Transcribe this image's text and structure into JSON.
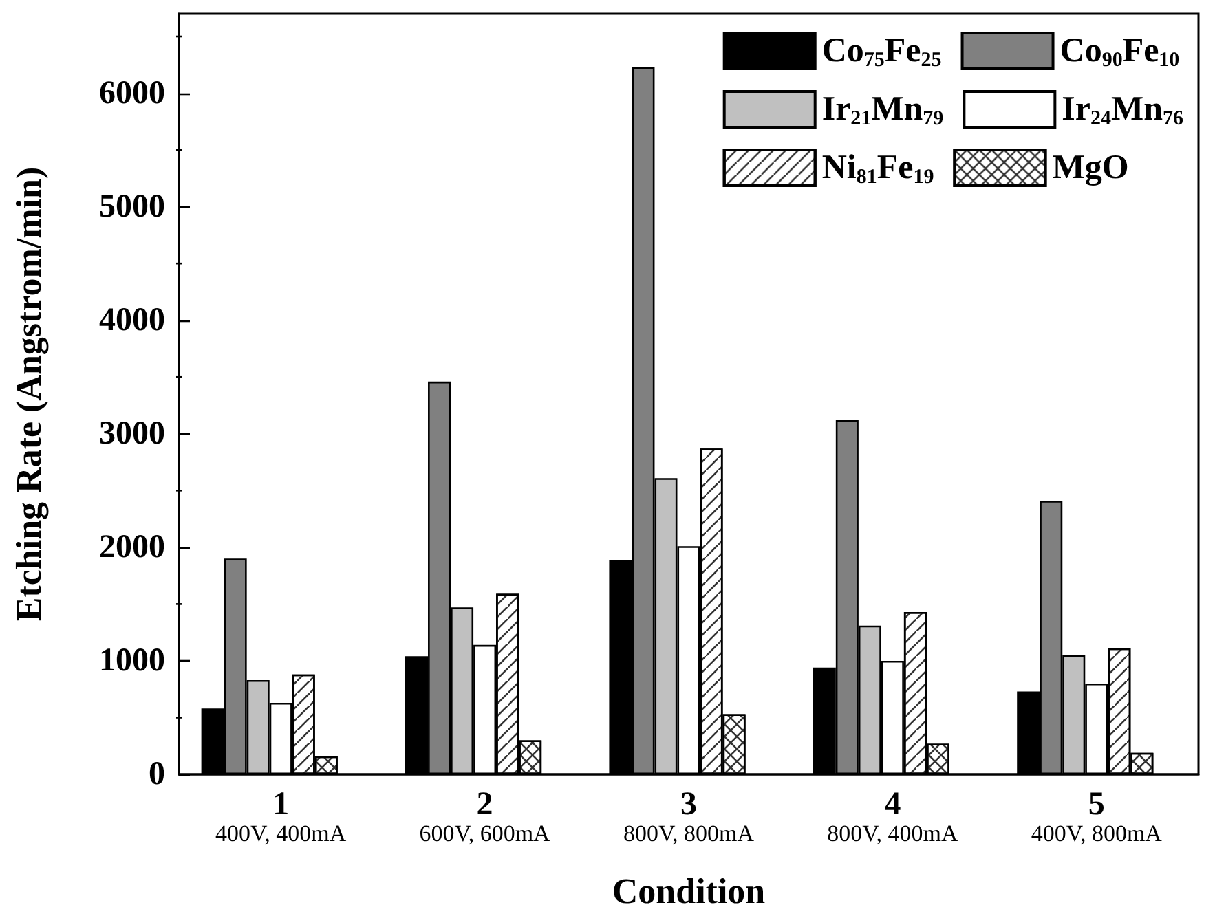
{
  "chart_data": {
    "type": "bar",
    "xlabel": "Condition",
    "ylabel": "Etching Rate (Angstrom/min)",
    "categories": [
      "1\n400V, 400mA",
      "2\n600V, 600mA",
      "3\n800V, 800mA",
      "4\n800V, 400mA",
      "5\n400V, 800mA"
    ],
    "series": [
      {
        "name": "Co$_{75}$Fe$_{25}$",
        "color": "#000000",
        "values": [
          580,
          1040,
          1890,
          940,
          730
        ]
      },
      {
        "name": "Co$_{90}$Fe$_{10}$",
        "color": "#808080",
        "values": [
          1900,
          3460,
          6230,
          3120,
          2410
        ]
      },
      {
        "name": "Ir$_{21}$Mn$_{79}$",
        "color": "#c0c0c0",
        "values": [
          830,
          1470,
          2610,
          1310,
          1050
        ]
      },
      {
        "name": "Ir$_{24}$Mn$_{76}$",
        "color": "#ffffff",
        "values": [
          630,
          1140,
          2010,
          1000,
          800
        ]
      },
      {
        "name": "Ni$_{81}$Fe$_{19}$",
        "color": "#ffffff",
        "values": [
          880,
          1590,
          2870,
          1430,
          1110
        ]
      },
      {
        "name": "MgO",
        "color": "#ffffff",
        "values": [
          160,
          300,
          530,
          270,
          190
        ]
      }
    ],
    "ylim": [
      0,
      6700
    ],
    "yticks": [
      0,
      1000,
      2000,
      3000,
      4000,
      5000,
      6000
    ],
    "grid": false,
    "legend": "top right"
  }
}
